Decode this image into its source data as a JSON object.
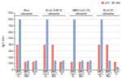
{
  "chart_data": {
    "type": "bar",
    "ylabel": "IgG titer",
    "annotations": [
      "Mock\nadsorption",
      "HCoV-229E S1\nadsorption",
      "SARS-CoV-2 S1\nadsorption",
      "BCoV S1\nadsorption"
    ],
    "categories": [
      "SARS-\nCoV-2\nS1",
      "SARS-\nCoV-2\nRBD",
      "BCov\nS1",
      "SARS-\nCoV-2\nS1",
      "SARS-\nCoV-2\nRBD",
      "BCov\nS1",
      "SARS-\nCoV-2\nS1",
      "SARS-\nCoV-2\nRBD",
      "BCov\nS1",
      "SARS-\nCoV-2\nS1",
      "SARS-\nCoV-2\nRBD",
      "BCov\nS1"
    ],
    "series": [
      {
        "name": "027",
        "color": "#E8827A",
        "values": [
          400,
          130,
          130,
          400,
          400,
          130,
          130,
          130,
          130,
          400,
          400,
          130
        ]
      },
      {
        "name": "2H5",
        "color": "#8FA8C8",
        "values": [
          800,
          150,
          150,
          800,
          150,
          150,
          800,
          150,
          150,
          800,
          150,
          50
        ]
      }
    ],
    "ylim": [
      0,
      900
    ],
    "yticks": [
      0,
      100,
      200,
      300,
      400,
      500,
      600,
      700,
      800,
      900
    ],
    "grid": true,
    "legend": "upper right"
  }
}
